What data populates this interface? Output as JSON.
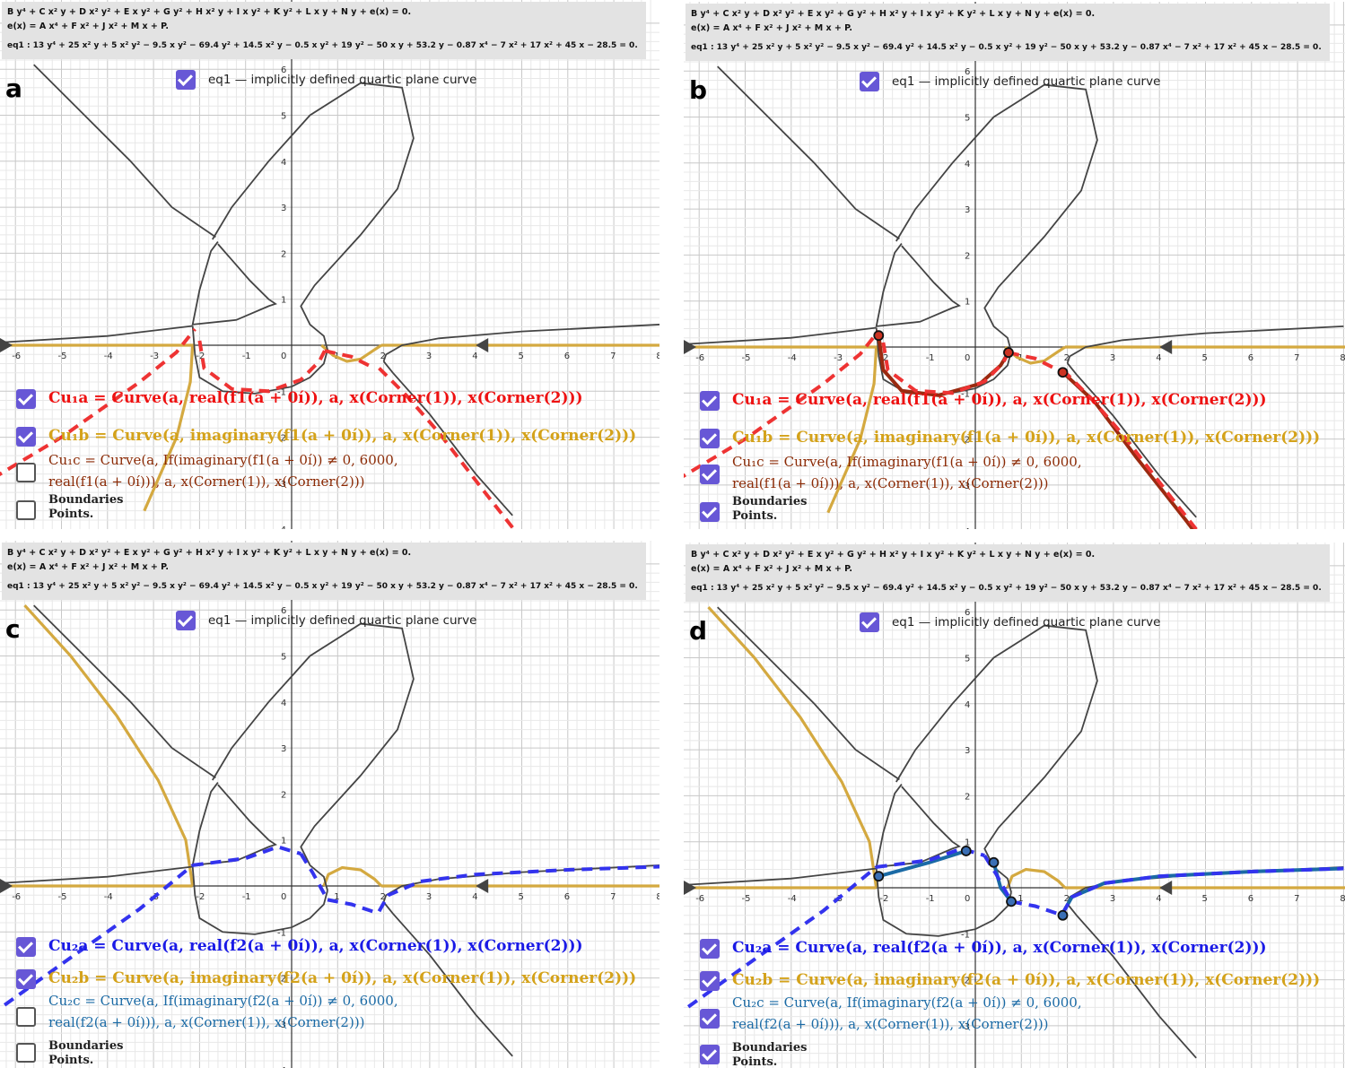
{
  "header": {
    "line1": "B y⁴ + C x² y + D x² y² + E x y² + G y² + H x² y + I x y² + K y² + L x y + N y + e(x) = 0.",
    "line2": "e(x) = A x⁴ + F x² + J x² + M x + P.",
    "line3": "eq1 : 13 y⁴ + 25 x² y + 5 x² y² − 9.5 x y² − 69.4 y² + 14.5 x² y − 0.5 x y² + 19 y² − 50 x y + 53.2 y − 0.87 x⁴ − 7 x² + 17 x² + 45 x − 28.5 = 0."
  },
  "eq_toggle_label": "eq1 — implicitly defined quartic plane curve",
  "boundaries_label_1": "Boundaries",
  "boundaries_label_2": "Points.",
  "axes": {
    "x_ticks": [
      "-6",
      "-5",
      "-4",
      "-3",
      "-2",
      "-1",
      "0",
      "1",
      "2",
      "3",
      "4",
      "5",
      "6",
      "7",
      "8"
    ],
    "y_ticks": [
      "1",
      "2",
      "3",
      "4",
      "5",
      "6"
    ],
    "y_neg_ticks": [
      "-1",
      "-2",
      "-3",
      "-4"
    ]
  },
  "panels": [
    {
      "id": "a",
      "label": "a",
      "legend": {
        "row1": "Cu₁a = Curve(a, real(f1(a + 0í)), a, x(Corner(1)), x(Corner(2)))",
        "row2": "Cu₁b = Curve(a, imaginary(f1(a + 0í)), a, x(Corner(1)), x(Corner(2)))",
        "row3a": "Cu₁c = Curve(a, If(imaginary(f1(a + 0í)) ≠ 0, 6000,",
        "row3b": "real(f1(a + 0í))), a, x(Corner(1)), x(Corner(2)))"
      },
      "checks": {
        "eq": true,
        "row1": true,
        "row2": true,
        "row3": false,
        "bnd": false
      },
      "colors": {
        "row1": "#ee1111",
        "row2": "#d4a21a",
        "row3": "#8b2a05"
      }
    },
    {
      "id": "b",
      "label": "b",
      "legend": {
        "row1": "Cu₁a = Curve(a, real(f1(a + 0í)), a, x(Corner(1)), x(Corner(2)))",
        "row2": "Cu₁b = Curve(a, imaginary(f1(a + 0í)), a, x(Corner(1)), x(Corner(2)))",
        "row3a": "Cu₁c = Curve(a, If(imaginary(f1(a + 0í)) ≠ 0, 6000,",
        "row3b": "real(f1(a + 0í))), a, x(Corner(1)), x(Corner(2)))"
      },
      "checks": {
        "eq": true,
        "row1": true,
        "row2": true,
        "row3": true,
        "bnd": true
      },
      "colors": {
        "row1": "#ee1111",
        "row2": "#d4a21a",
        "row3": "#8b2a05"
      }
    },
    {
      "id": "c",
      "label": "c",
      "legend": {
        "row1": "Cu₂a = Curve(a, real(f2(a + 0í)), a, x(Corner(1)), x(Corner(2)))",
        "row2": "Cu₂b = Curve(a, imaginary(f2(a + 0í)), a, x(Corner(1)), x(Corner(2)))",
        "row3a": "Cu₂c = Curve(a, If(imaginary(f2(a + 0í)) ≠ 0, 6000,",
        "row3b": "real(f2(a + 0í))), a, x(Corner(1)), x(Corner(2)))"
      },
      "checks": {
        "eq": true,
        "row1": true,
        "row2": true,
        "row3": false,
        "bnd": false
      },
      "colors": {
        "row1": "#1a1ae6",
        "row2": "#d4a21a",
        "row3": "#1a6aa5"
      }
    },
    {
      "id": "d",
      "label": "d",
      "legend": {
        "row1": "Cu₂a = Curve(a, real(f2(a + 0í)), a, x(Corner(1)), x(Corner(2)))",
        "row2": "Cu₂b = Curve(a, imaginary(f2(a + 0í)), a, x(Corner(1)), x(Corner(2)))",
        "row3a": "Cu₂c = Curve(a, If(imaginary(f2(a + 0í)) ≠ 0, 6000,",
        "row3b": "real(f2(a + 0í))), a, x(Corner(1)), x(Corner(2)))"
      },
      "checks": {
        "eq": true,
        "row1": true,
        "row2": true,
        "row3": true,
        "bnd": true
      },
      "colors": {
        "row1": "#1a1ae6",
        "row2": "#d4a21a",
        "row3": "#1a6aa5"
      }
    }
  ],
  "colors": {
    "quartic": "#444444",
    "imag_gold": "#d4a940",
    "red_dash": "#ee3333",
    "red_thick": "#9a2a10",
    "blue_dash": "#3333ee",
    "teal_thick": "#1a6aa5",
    "check_purple": "#6757d6",
    "grid_minor": "#e8e8e8",
    "grid_major": "#c8c8c8"
  }
}
